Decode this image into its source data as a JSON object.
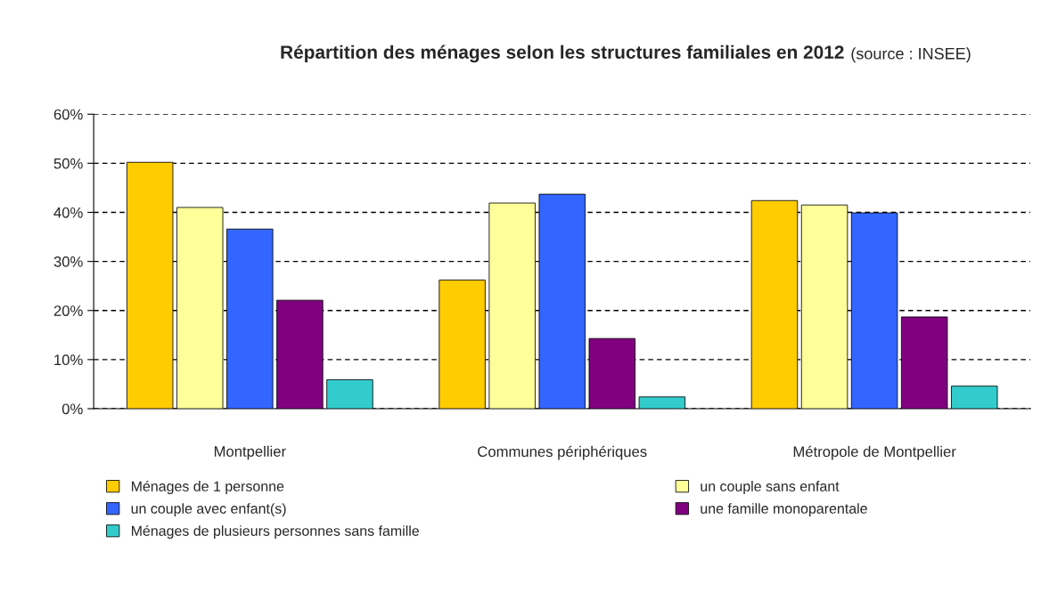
{
  "chart_data": {
    "type": "bar",
    "title": "Répartition des ménages selon les structures familiales en 2012",
    "annotations": [
      "(source : INSEE)"
    ],
    "categories": [
      "Montpellier",
      "Communes périphériques",
      "Métropole de Montpellier"
    ],
    "series": [
      {
        "name": "Ménages de 1 personne",
        "color": "#ffcc00",
        "values": [
          50.2,
          26.2,
          42.4
        ]
      },
      {
        "name": "un couple sans enfant",
        "color": "#ffff99",
        "values": [
          41.0,
          41.9,
          41.5
        ]
      },
      {
        "name": "un couple avec enfant(s)",
        "color": "#3366ff",
        "values": [
          36.6,
          43.7,
          39.9
        ]
      },
      {
        "name": "une famille monoparentale",
        "color": "#800080",
        "values": [
          22.1,
          14.3,
          18.7
        ]
      },
      {
        "name": "Ménages de plusieurs personnes sans famille",
        "color": "#33cccc",
        "values": [
          5.9,
          2.4,
          4.6
        ]
      }
    ],
    "ylim": [
      0,
      60
    ],
    "yticks": [
      {
        "value": 0,
        "label": "0%"
      },
      {
        "value": 10,
        "label": "10%"
      },
      {
        "value": 20,
        "label": "20%"
      },
      {
        "value": 30,
        "label": "30%"
      },
      {
        "value": 40,
        "label": "40%"
      },
      {
        "value": 50,
        "label": "50%"
      },
      {
        "value": 60,
        "label": "60%"
      }
    ],
    "grid": "y",
    "legend": "bottom"
  }
}
